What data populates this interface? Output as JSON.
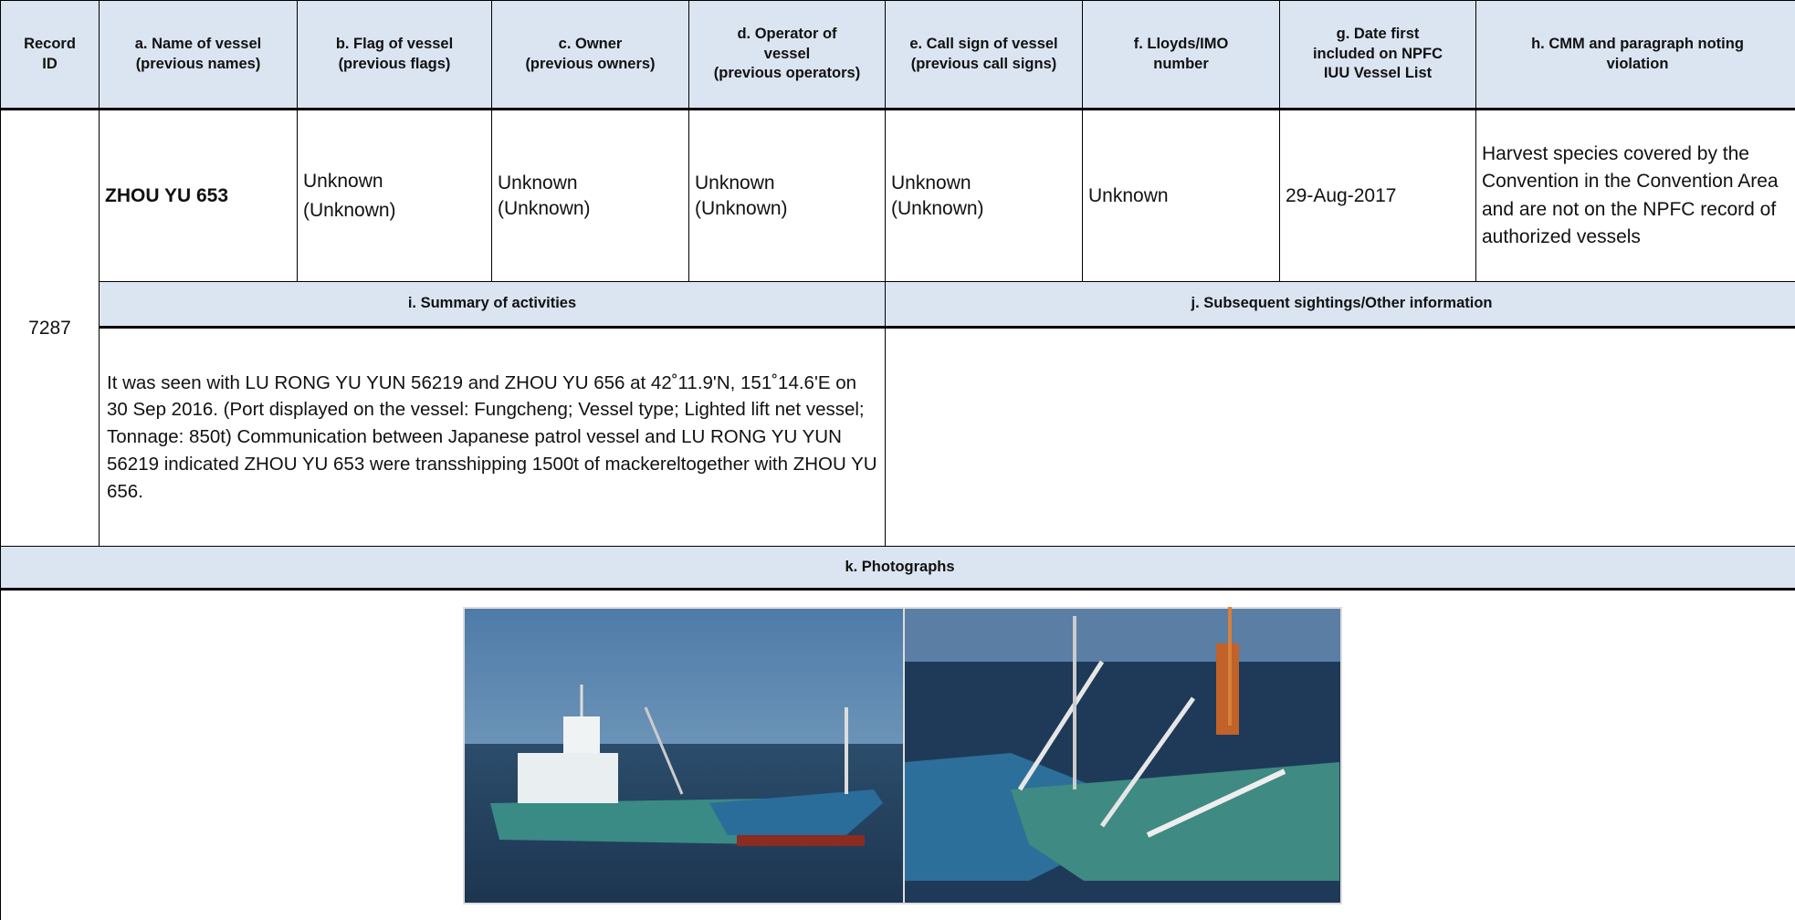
{
  "table": {
    "headers": [
      [
        "Record",
        "ID"
      ],
      [
        "a. Name of vessel",
        "(previous names)"
      ],
      [
        "b. Flag of vessel",
        "(previous flags)"
      ],
      [
        "c. Owner",
        "(previous owners)"
      ],
      [
        "d. Operator of",
        "vessel",
        "(previous operators)"
      ],
      [
        "e. Call sign of vessel",
        "(previous call signs)"
      ],
      [
        "f. Lloyds/IMO",
        "number"
      ],
      [
        "g. Date first",
        "included on NPFC",
        "IUU Vessel List"
      ],
      [
        "h. CMM and paragraph noting",
        "violation"
      ]
    ],
    "record_id": "7287",
    "name": "ZHOU YU 653",
    "flag": {
      "current": "Unknown",
      "previous": "(Unknown)"
    },
    "owner": {
      "current": "Unknown",
      "previous": "(Unknown)"
    },
    "operator": {
      "current": "Unknown",
      "previous": "(Unknown)"
    },
    "call_sign": {
      "current": "Unknown",
      "previous": "(Unknown)"
    },
    "imo": "Unknown",
    "date_first_included": "29-Aug-2017",
    "violation": "Harvest species covered by the Convention in the Convention Area and are not on the NPFC record of authorized vessels",
    "summary_header": "i. Summary of activities",
    "sightings_header": "j. Subsequent sightings/Other information",
    "summary": "It was seen with LU RONG YU YUN 56219 and ZHOU YU 656 at 42˚11.9'N, 151˚14.6'E on 30 Sep 2016. (Port displayed on the vessel: Fungcheng; Vessel type; Lighted lift net vessel; Tonnage: 850t) Communication between Japanese patrol vessel and LU RONG YU YUN 56219 indicated ZHOU YU 653 were transshipping 1500t of mackereltogether with ZHOU YU 656.",
    "photos_header": "k. Photographs"
  }
}
